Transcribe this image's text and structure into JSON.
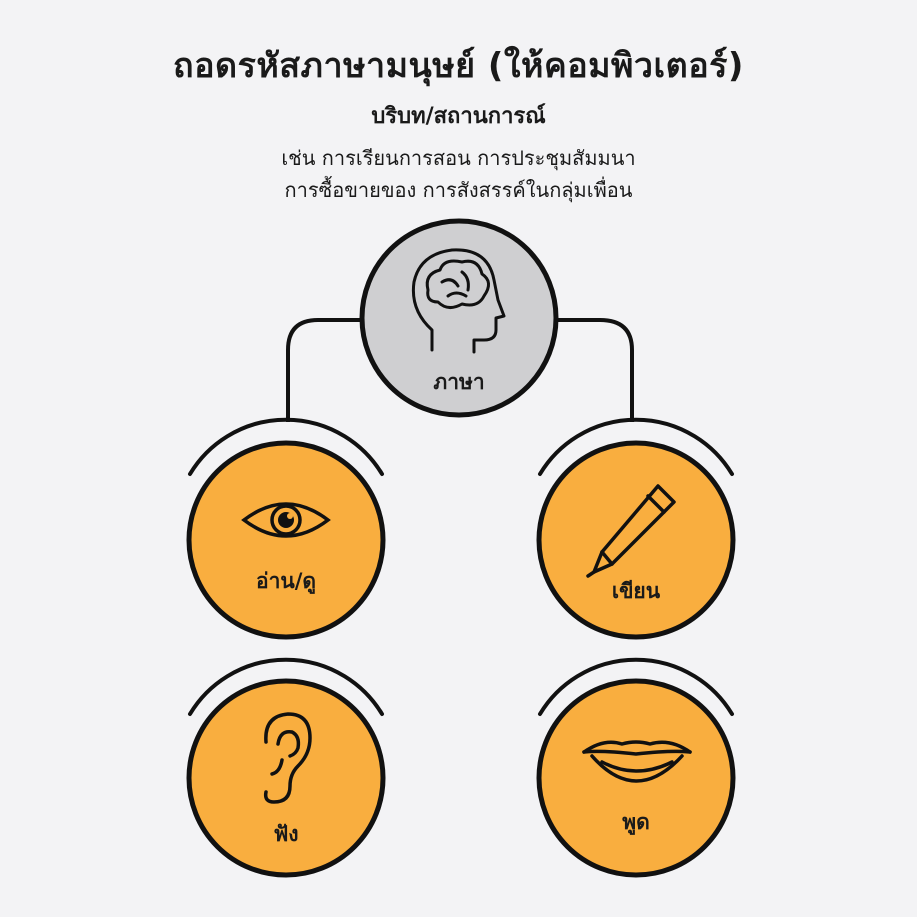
{
  "header": {
    "title": "ถอดรหัสภาษามนุษย์ (ให้คอมพิวเตอร์)",
    "subtitle": "บริบท/สถานการณ์",
    "description_lines": [
      "เช่น การเรียนการสอน การประชุมสัมมนา",
      "การซื้อขายของ การสังสรรค์ในกลุ่มเพื่อน"
    ]
  },
  "diagram": {
    "center": {
      "label": "ภาษา",
      "icon": "brain-head-icon",
      "color": "#cfcfd1"
    },
    "nodes": [
      {
        "label": "อ่าน/ดู",
        "icon": "eye-icon"
      },
      {
        "label": "เขียน",
        "icon": "pencil-icon"
      },
      {
        "label": "ฟัง",
        "icon": "ear-icon"
      },
      {
        "label": "พูด",
        "icon": "mouth-icon"
      }
    ],
    "node_color": "#f9ae3f",
    "outline_color": "#111111"
  }
}
